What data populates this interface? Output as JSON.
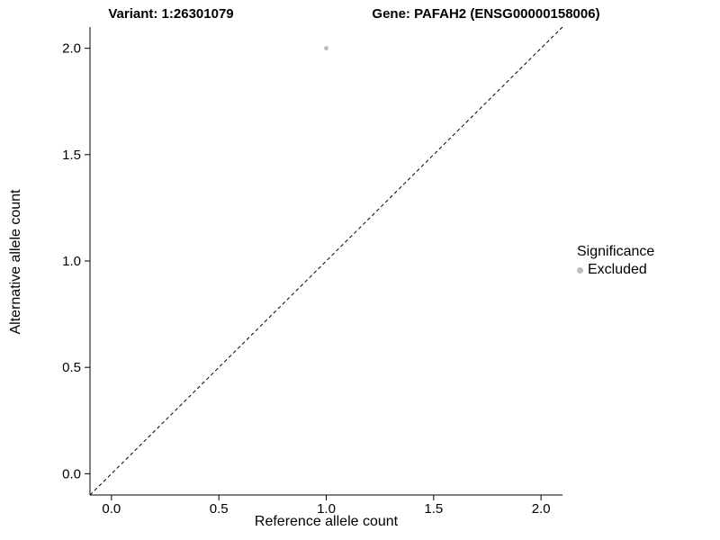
{
  "chart_data": {
    "type": "scatter",
    "title_left": "Variant: 1:26301079",
    "title_right": "Gene: PAFAH2 (ENSG00000158006)",
    "xlabel": "Reference allele count",
    "ylabel": "Alternative allele count",
    "xlim": [
      -0.1,
      2.1
    ],
    "ylim": [
      -0.1,
      2.1
    ],
    "xticks": [
      0.0,
      0.5,
      1.0,
      1.5,
      2.0
    ],
    "yticks": [
      0.0,
      0.5,
      1.0,
      1.5,
      2.0
    ],
    "xtick_labels": [
      "0.0",
      "0.5",
      "1.0",
      "1.5",
      "2.0"
    ],
    "ytick_labels": [
      "0.0",
      "0.5",
      "1.0",
      "1.5",
      "2.0"
    ],
    "grid": false,
    "points": [
      {
        "x": 1.0,
        "y": 2.0,
        "series": "Excluded"
      }
    ],
    "point_color": "#bdbdbd",
    "reference_line": {
      "type": "identity",
      "style": "dashed",
      "color": "#000000"
    },
    "legend": {
      "title": "Significance",
      "position": "right",
      "entries": [
        {
          "label": "Excluded",
          "color": "#bdbdbd"
        }
      ]
    }
  }
}
